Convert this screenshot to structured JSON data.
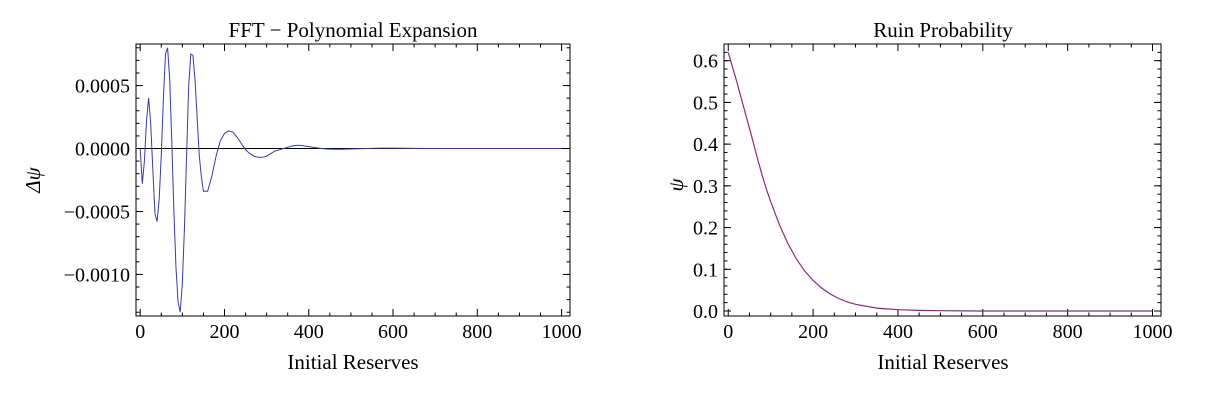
{
  "chart_data": [
    {
      "type": "line",
      "title": "FFT − Polynomial Expansion",
      "xlabel": "Initial Reserves",
      "ylabel": "Δψ",
      "xlim": [
        -10,
        1020
      ],
      "ylim": [
        -0.00133,
        0.00083
      ],
      "xticks": [
        0,
        200,
        400,
        600,
        800,
        1000
      ],
      "xtick_labels": [
        "0",
        "200",
        "400",
        "600",
        "800",
        "1000"
      ],
      "yticks": [
        0.0005,
        0.0,
        -0.0005,
        -0.001
      ],
      "ytick_labels": [
        "0.0005",
        "0.0000",
        "−0.0005",
        "−0.0010"
      ],
      "grid": false,
      "line_color": "#3c3ca0",
      "series": [
        {
          "x": [
            0,
            5,
            10,
            15,
            20,
            25,
            30,
            35,
            40,
            45,
            50,
            55,
            60,
            65,
            70,
            75,
            80,
            85,
            90,
            95,
            100,
            105,
            110,
            115,
            120,
            125,
            130,
            135,
            140,
            145,
            150,
            160,
            170,
            180,
            190,
            200,
            210,
            220,
            230,
            240,
            250,
            260,
            270,
            280,
            290,
            300,
            310,
            320,
            330,
            340,
            350,
            360,
            370,
            380,
            390,
            400,
            410,
            420,
            430,
            440,
            450,
            460,
            480,
            500,
            520,
            540,
            560,
            580,
            600,
            650,
            700,
            750,
            800,
            850,
            900,
            950,
            1000
          ],
          "y": [
            0.0,
            -0.00028,
            -0.0001,
            0.00022,
            0.0004,
            0.0002,
            -0.00018,
            -0.00052,
            -0.00058,
            -0.0004,
            -5e-05,
            0.0004,
            0.00075,
            0.0008,
            0.00055,
            5e-05,
            -0.0005,
            -0.00095,
            -0.00122,
            -0.0013,
            -0.00108,
            -0.00062,
            -5e-05,
            0.0005,
            0.00075,
            0.00074,
            0.00055,
            0.00025,
            -5e-05,
            -0.00022,
            -0.00034,
            -0.00034,
            -0.00022,
            -6e-05,
            6e-05,
            0.00012,
            0.00014,
            0.00013,
            9e-05,
            4e-05,
            -1e-05,
            -4e-05,
            -6e-05,
            -7e-05,
            -7e-05,
            -6e-05,
            -4e-05,
            -2e-05,
            -1e-05,
            0.0,
            1e-05,
            2e-05,
            2.5e-05,
            2.5e-05,
            2e-05,
            1.5e-05,
            1e-05,
            5e-06,
            0.0,
            -3e-06,
            -5e-06,
            -6e-06,
            -6e-06,
            -4e-06,
            -2e-06,
            0.0,
            2e-06,
            3e-06,
            3e-06,
            1e-06,
            0.0,
            0.0,
            0.0,
            0.0,
            0.0,
            0.0,
            0.0
          ]
        }
      ]
    },
    {
      "type": "line",
      "title": "Ruin Probability",
      "xlabel": "Initial Reserves",
      "ylabel": "ψ",
      "xlim": [
        -10,
        1020
      ],
      "ylim": [
        -0.012,
        0.64
      ],
      "xticks": [
        0,
        200,
        400,
        600,
        800,
        1000
      ],
      "xtick_labels": [
        "0",
        "200",
        "400",
        "600",
        "800",
        "1000"
      ],
      "yticks": [
        0.0,
        0.1,
        0.2,
        0.3,
        0.4,
        0.5,
        0.6
      ],
      "ytick_labels": [
        "0.0",
        "0.1",
        "0.2",
        "0.3",
        "0.4",
        "0.5",
        "0.6"
      ],
      "grid": false,
      "line_color": "#8a2a7a",
      "series": [
        {
          "x": [
            0,
            10,
            20,
            30,
            40,
            50,
            60,
            70,
            80,
            90,
            100,
            120,
            140,
            160,
            180,
            200,
            220,
            240,
            260,
            280,
            300,
            350,
            400,
            450,
            500,
            550,
            600,
            700,
            800,
            900,
            1000
          ],
          "y": [
            0.62,
            0.585,
            0.55,
            0.512,
            0.475,
            0.438,
            0.4,
            0.362,
            0.325,
            0.292,
            0.262,
            0.208,
            0.163,
            0.126,
            0.096,
            0.073,
            0.055,
            0.041,
            0.03,
            0.022,
            0.016,
            0.007,
            0.003,
            0.0015,
            0.0006,
            0.0003,
            0.0001,
            0.0,
            0.0,
            0.0,
            0.0
          ]
        }
      ]
    }
  ]
}
